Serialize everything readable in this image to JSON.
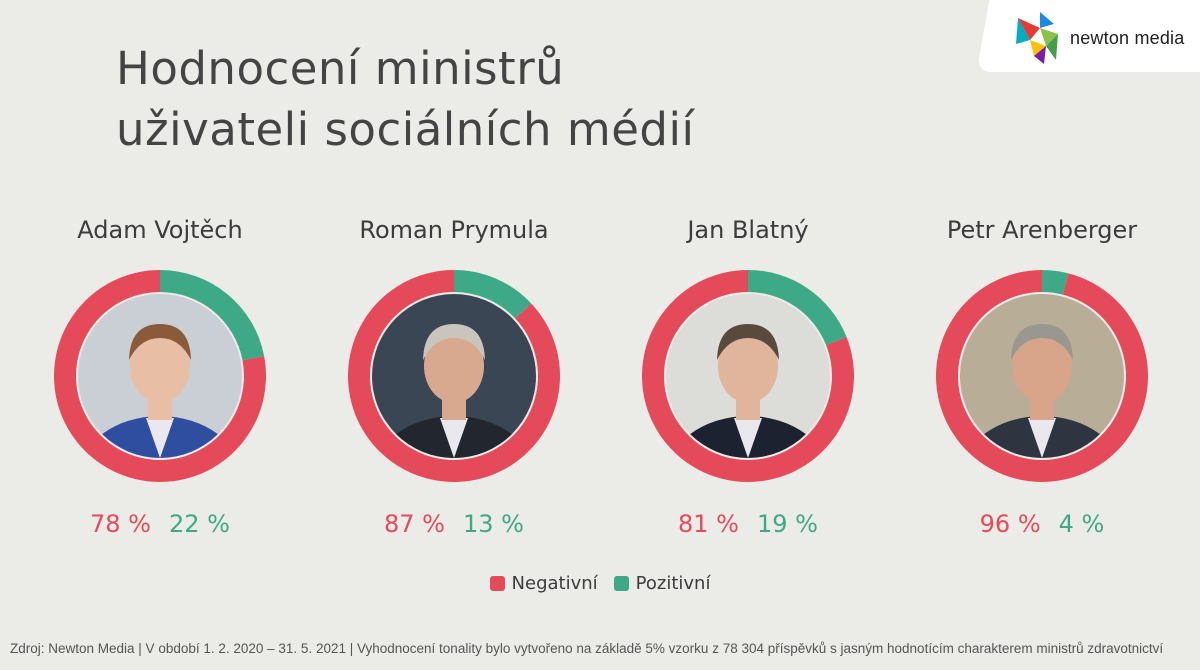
{
  "header": {
    "title_line1": "Hodnocení ministrů",
    "title_line2": "uživateli sociálních médií"
  },
  "logo": {
    "text": "newton media",
    "icon": "newton-media-logo-icon"
  },
  "colors": {
    "negative": "#e54a5a",
    "positive": "#3ea986",
    "background": "#ebebe8"
  },
  "chart_data": {
    "type": "pie",
    "subtype": "donut",
    "categories": [
      "Adam Vojtěch",
      "Roman Prymula",
      "Jan Blatný",
      "Petr Arenberger"
    ],
    "series": [
      {
        "name": "Negativní",
        "values": [
          78,
          87,
          81,
          96
        ]
      },
      {
        "name": "Pozitivní",
        "values": [
          22,
          13,
          19,
          4
        ]
      }
    ],
    "legend": "bottom-center",
    "unit": "%"
  },
  "ministers": [
    {
      "name": "Adam Vojtěch",
      "negative": 78,
      "positive": 22,
      "negative_label": "78 %",
      "positive_label": "22 %"
    },
    {
      "name": "Roman Prymula",
      "negative": 87,
      "positive": 13,
      "negative_label": "87 %",
      "positive_label": "13 %"
    },
    {
      "name": "Jan Blatný",
      "negative": 81,
      "positive": 19,
      "negative_label": "81 %",
      "positive_label": "19 %"
    },
    {
      "name": "Petr Arenberger",
      "negative": 96,
      "positive": 4,
      "negative_label": "96 %",
      "positive_label": "4 %"
    }
  ],
  "legend": {
    "negative_label": "Negativní",
    "positive_label": "Pozitivní"
  },
  "footer": {
    "source": "Zdroj: Newton Media | V období 1. 2. 2020 – 31. 5. 2021 | Vyhodnocení tonality bylo vytvořeno na základě 5% vzorku z 78 304 příspěvků s jasným hodnotícím charakterem ministrů zdravotnictví"
  }
}
